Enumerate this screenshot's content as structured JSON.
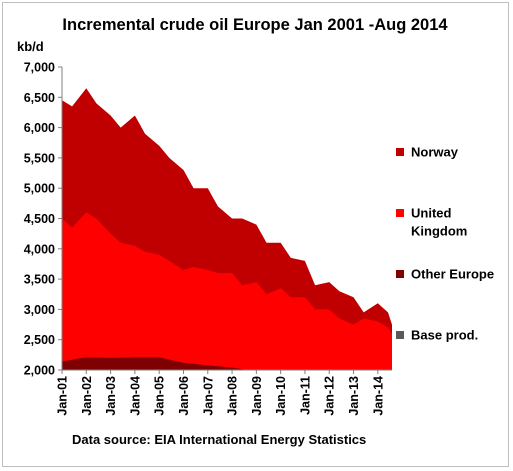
{
  "chart_data": {
    "type": "area",
    "stacked": true,
    "title": "Incremental crude oil Europe  Jan 2001 -Aug 2014",
    "ylabel": "kb/d",
    "xlabel": "",
    "caption": "Data source: EIA International Energy Statistics",
    "ylim": [
      2000,
      7000
    ],
    "x_range": [
      "2001-01",
      "2014-08"
    ],
    "y_ticks": [
      "2,000",
      "2,500",
      "3,000",
      "3,500",
      "4,000",
      "4,500",
      "5,000",
      "5,500",
      "6,000",
      "6,500",
      "7,000"
    ],
    "x_ticks": [
      "Jan-01",
      "Jan-02",
      "Jan-03",
      "Jan-04",
      "Jan-05",
      "Jan-06",
      "Jan-07",
      "Jan-08",
      "Jan-09",
      "Jan-10",
      "Jan-11",
      "Jan-12",
      "Jan-13",
      "Jan-14"
    ],
    "grid": false,
    "legend_position": "right",
    "legend": [
      {
        "label": "Norway",
        "color": "#c00000"
      },
      {
        "label": "United Kingdom",
        "color": "#ff0000"
      },
      {
        "label": "Other Europe",
        "color": "#7f0000"
      },
      {
        "label": "Base prod.",
        "color": "#595959"
      }
    ],
    "series": [
      {
        "name": "Base prod.",
        "color": "#595959",
        "values_note": "constant base",
        "base": 2000
      },
      {
        "name": "Other Europe",
        "color": "#7f0000",
        "x": [
          "2001-01",
          "2002-01",
          "2003-01",
          "2004-01",
          "2005-01",
          "2006-01",
          "2007-01",
          "2008-01",
          "2008-09",
          "2014-08"
        ],
        "top": [
          2140,
          2210,
          2200,
          2210,
          2210,
          2120,
          2080,
          2040,
          2000,
          2000
        ]
      },
      {
        "name": "United Kingdom",
        "color": "#ff0000",
        "x": [
          "2001-01",
          "2001-06",
          "2002-01",
          "2002-06",
          "2003-01",
          "2003-06",
          "2004-01",
          "2004-06",
          "2005-01",
          "2005-06",
          "2006-01",
          "2006-06",
          "2007-01",
          "2007-06",
          "2008-01",
          "2008-06",
          "2009-01",
          "2009-06",
          "2010-01",
          "2010-06",
          "2011-01",
          "2011-06",
          "2012-01",
          "2012-06",
          "2013-01",
          "2013-06",
          "2014-01",
          "2014-06",
          "2014-08"
        ],
        "top": [
          4500,
          4350,
          4600,
          4500,
          4250,
          4100,
          4050,
          3950,
          3900,
          3800,
          3650,
          3700,
          3650,
          3600,
          3600,
          3400,
          3450,
          3250,
          3350,
          3200,
          3200,
          3000,
          3000,
          2850,
          2750,
          2850,
          2800,
          2700,
          2600
        ]
      },
      {
        "name": "Norway",
        "color": "#c00000",
        "x": [
          "2001-01",
          "2001-06",
          "2002-01",
          "2002-06",
          "2003-01",
          "2003-06",
          "2004-01",
          "2004-06",
          "2005-01",
          "2005-06",
          "2006-01",
          "2006-06",
          "2007-01",
          "2007-06",
          "2008-01",
          "2008-06",
          "2009-01",
          "2009-06",
          "2010-01",
          "2010-06",
          "2011-01",
          "2011-06",
          "2012-01",
          "2012-06",
          "2013-01",
          "2013-06",
          "2014-01",
          "2014-06",
          "2014-08"
        ],
        "top": [
          6450,
          6350,
          6650,
          6400,
          6200,
          6000,
          6200,
          5900,
          5700,
          5500,
          5300,
          5000,
          5000,
          4700,
          4500,
          4500,
          4400,
          4100,
          4100,
          3850,
          3800,
          3400,
          3450,
          3300,
          3200,
          2950,
          3100,
          2950,
          2750
        ]
      }
    ]
  }
}
